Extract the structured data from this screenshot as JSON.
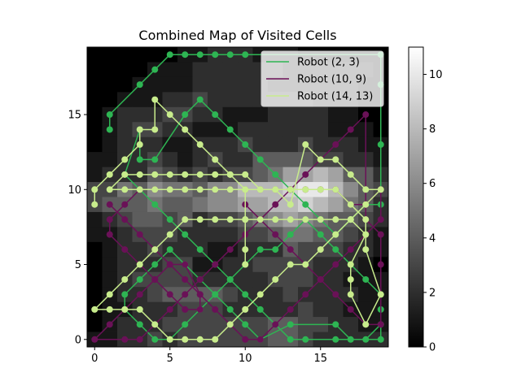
{
  "chart_data": {
    "type": "heatmap",
    "title": "Combined Map of Visited Cells",
    "xlabel": "",
    "ylabel": "",
    "xlim": [
      -0.5,
      19.5
    ],
    "ylim": [
      -0.5,
      19.5
    ],
    "x_ticks": [
      0,
      5,
      10,
      15
    ],
    "y_ticks": [
      0,
      5,
      10,
      15
    ],
    "grid": false,
    "legend_position": "upper right",
    "colorbar": {
      "colormap": "gray",
      "range": [
        0,
        11
      ],
      "ticks": [
        0,
        2,
        4,
        6,
        8,
        10
      ]
    },
    "heatmap_rows_top_to_bottom": [
      "00000011222111000000",
      "00001112222221111110",
      "00011112222211111100",
      "00111223222222211100",
      "01222332211122221100",
      "01233221112222221110",
      "01222112223222322211",
      "11223212322444433221",
      "12224323233457787442",
      "33546554668889AA8643",
      "34445445667788987542",
      "12344342334567654432",
      "11233322223345544321",
      "01223222112224333221",
      "01222331122333322210",
      "01233332222233322111",
      "01223444432223222211",
      "01122233322222322111",
      "01222333333344332211",
      "11223233333344322222"
    ],
    "series": [
      {
        "name": "Robot (2, 3)",
        "color": "#2eb553",
        "points": [
          [
            1,
            14
          ],
          [
            1,
            15
          ],
          [
            3,
            17
          ],
          [
            4,
            18
          ],
          [
            5,
            19
          ],
          [
            6,
            19
          ],
          [
            7,
            19
          ],
          [
            8,
            19
          ],
          [
            9,
            19
          ],
          [
            10,
            19
          ],
          [
            19,
            19
          ],
          [
            19,
            17
          ],
          [
            19,
            13
          ],
          [
            19,
            9
          ],
          [
            18,
            9
          ],
          [
            17,
            8
          ],
          [
            16,
            7
          ],
          [
            15,
            8
          ],
          [
            14,
            9
          ],
          [
            13,
            10
          ],
          [
            12,
            11
          ],
          [
            11,
            12
          ],
          [
            10,
            13
          ],
          [
            9,
            14
          ],
          [
            8,
            15
          ],
          [
            7,
            16
          ],
          [
            6,
            15
          ],
          [
            4,
            12
          ],
          [
            3,
            12
          ],
          [
            3,
            14
          ],
          [
            2,
            11
          ],
          [
            3,
            10
          ],
          [
            4,
            9
          ],
          [
            5,
            8
          ],
          [
            6,
            7
          ],
          [
            7,
            6
          ],
          [
            8,
            5
          ],
          [
            9,
            4
          ],
          [
            10,
            3
          ],
          [
            11,
            2
          ],
          [
            12,
            1
          ],
          [
            13,
            0
          ],
          [
            14,
            0
          ],
          [
            16,
            0
          ],
          [
            19,
            0
          ],
          [
            19,
            3
          ],
          [
            18,
            4
          ],
          [
            17,
            5
          ],
          [
            16,
            6
          ],
          [
            15,
            7
          ],
          [
            14,
            8
          ],
          [
            13,
            7
          ],
          [
            12,
            6
          ],
          [
            11,
            6
          ],
          [
            10,
            5
          ],
          [
            9,
            4
          ],
          [
            8,
            3
          ],
          [
            7,
            2
          ],
          [
            6,
            1
          ],
          [
            5,
            0
          ],
          [
            4,
            0
          ],
          [
            3,
            1
          ],
          [
            2,
            2
          ],
          [
            2,
            3
          ],
          [
            3,
            4
          ],
          [
            4,
            5
          ],
          [
            5,
            6
          ],
          [
            6,
            5
          ],
          [
            7,
            4
          ],
          [
            8,
            3
          ],
          [
            9,
            2
          ],
          [
            10,
            1
          ],
          [
            11,
            0
          ],
          [
            13,
            1
          ],
          [
            16,
            1
          ],
          [
            17,
            0
          ],
          [
            18,
            0
          ],
          [
            19,
            1
          ],
          [
            19,
            2
          ]
        ]
      },
      {
        "name": "Robot (10, 9)",
        "color": "#6a1157",
        "points": [
          [
            10,
            9
          ],
          [
            11,
            8
          ],
          [
            12,
            7
          ],
          [
            13,
            6
          ],
          [
            14,
            5
          ],
          [
            15,
            4
          ],
          [
            16,
            3
          ],
          [
            17,
            2
          ],
          [
            18,
            1
          ],
          [
            19,
            1
          ],
          [
            19,
            5
          ],
          [
            19,
            7
          ],
          [
            18,
            8
          ],
          [
            18,
            15
          ],
          [
            17,
            14
          ],
          [
            16,
            13
          ],
          [
            15,
            12
          ],
          [
            14,
            11
          ],
          [
            13,
            10
          ],
          [
            12,
            9
          ],
          [
            11,
            8
          ],
          [
            10,
            7
          ],
          [
            9,
            6
          ],
          [
            8,
            5
          ],
          [
            7,
            4
          ],
          [
            6,
            3
          ],
          [
            5,
            2
          ],
          [
            4,
            1
          ],
          [
            3,
            0
          ],
          [
            2,
            0
          ],
          [
            0,
            0
          ],
          [
            1,
            1
          ],
          [
            2,
            2
          ],
          [
            3,
            3
          ],
          [
            4,
            4
          ],
          [
            5,
            5
          ],
          [
            6,
            5
          ],
          [
            7,
            3
          ],
          [
            7,
            2
          ],
          [
            6,
            2
          ],
          [
            5,
            3
          ],
          [
            4,
            4
          ],
          [
            3,
            5
          ],
          [
            2,
            6
          ],
          [
            1,
            7
          ],
          [
            1,
            8
          ],
          [
            2,
            9
          ],
          [
            3,
            10
          ],
          [
            4,
            10
          ],
          [
            5,
            10
          ],
          [
            6,
            10
          ],
          [
            7,
            10
          ],
          [
            8,
            10
          ],
          [
            9,
            10
          ],
          [
            10,
            10
          ],
          [
            11,
            10
          ],
          [
            12,
            10
          ],
          [
            13,
            10
          ],
          [
            14,
            10
          ],
          [
            15,
            10
          ],
          [
            16,
            10
          ],
          [
            17,
            9
          ],
          [
            18,
            9
          ],
          [
            19,
            10
          ],
          [
            19,
            8
          ],
          [
            18,
            7
          ],
          [
            17,
            6
          ],
          [
            16,
            5
          ],
          [
            15,
            4
          ],
          [
            14,
            3
          ],
          [
            13,
            2
          ],
          [
            12,
            1
          ],
          [
            11,
            0
          ],
          [
            10,
            0
          ],
          [
            9,
            1
          ],
          [
            8,
            2
          ],
          [
            7,
            3
          ],
          [
            6,
            4
          ],
          [
            5,
            5
          ],
          [
            4,
            6
          ],
          [
            3,
            7
          ],
          [
            2,
            8
          ],
          [
            1,
            9
          ]
        ]
      },
      {
        "name": "Robot (14, 13)",
        "color": "#c8ec8c",
        "points": [
          [
            0,
            9
          ],
          [
            0,
            10
          ],
          [
            1,
            11
          ],
          [
            2,
            12
          ],
          [
            3,
            13
          ],
          [
            3,
            14
          ],
          [
            4,
            14
          ],
          [
            4,
            16
          ],
          [
            5,
            15
          ],
          [
            6,
            14
          ],
          [
            7,
            13
          ],
          [
            8,
            12
          ],
          [
            9,
            11
          ],
          [
            10,
            11
          ],
          [
            11,
            10
          ],
          [
            12,
            10
          ],
          [
            13,
            9
          ],
          [
            14,
            13
          ],
          [
            15,
            12
          ],
          [
            16,
            12
          ],
          [
            17,
            11
          ],
          [
            18,
            10
          ],
          [
            19,
            10
          ],
          [
            18,
            9
          ],
          [
            17,
            8
          ],
          [
            16,
            7
          ],
          [
            15,
            6
          ],
          [
            14,
            5
          ],
          [
            13,
            5
          ],
          [
            12,
            4
          ],
          [
            11,
            3
          ],
          [
            10,
            2
          ],
          [
            9,
            1
          ],
          [
            8,
            0
          ],
          [
            7,
            0
          ],
          [
            6,
            0
          ],
          [
            5,
            0
          ],
          [
            4,
            1
          ],
          [
            3,
            2
          ],
          [
            2,
            2
          ],
          [
            1,
            2
          ],
          [
            0,
            2
          ],
          [
            1,
            3
          ],
          [
            2,
            4
          ],
          [
            3,
            5
          ],
          [
            4,
            6
          ],
          [
            5,
            7
          ],
          [
            6,
            8
          ],
          [
            7,
            8
          ],
          [
            8,
            8
          ],
          [
            9,
            8
          ],
          [
            10,
            8
          ],
          [
            11,
            8
          ],
          [
            12,
            8
          ],
          [
            13,
            8
          ],
          [
            14,
            8
          ],
          [
            15,
            8
          ],
          [
            16,
            8
          ],
          [
            17,
            8
          ],
          [
            18,
            7
          ],
          [
            17,
            5
          ],
          [
            17,
            4
          ],
          [
            17,
            3
          ],
          [
            18,
            1
          ],
          [
            19,
            3
          ],
          [
            18,
            6
          ],
          [
            18,
            8
          ],
          [
            17,
            9
          ],
          [
            16,
            10
          ],
          [
            15,
            10
          ],
          [
            14,
            10
          ],
          [
            13,
            10
          ],
          [
            12,
            10
          ],
          [
            11,
            10
          ],
          [
            10,
            10
          ],
          [
            9,
            10
          ],
          [
            8,
            10
          ],
          [
            7,
            10
          ],
          [
            6,
            10
          ],
          [
            5,
            10
          ],
          [
            4,
            10
          ],
          [
            3,
            10
          ],
          [
            2,
            10
          ],
          [
            1,
            10
          ],
          [
            2,
            11
          ],
          [
            3,
            11
          ],
          [
            4,
            11
          ],
          [
            5,
            11
          ],
          [
            6,
            11
          ],
          [
            7,
            11
          ],
          [
            8,
            11
          ],
          [
            9,
            11
          ],
          [
            10,
            10
          ],
          [
            10,
            8
          ],
          [
            10,
            6
          ],
          [
            10,
            5
          ]
        ]
      }
    ],
    "legend": [
      {
        "label": "Robot (2, 3)",
        "color": "#2eb553"
      },
      {
        "label": "Robot (10, 9)",
        "color": "#6a1157"
      },
      {
        "label": "Robot (14, 13)",
        "color": "#c8ec8c"
      }
    ]
  }
}
